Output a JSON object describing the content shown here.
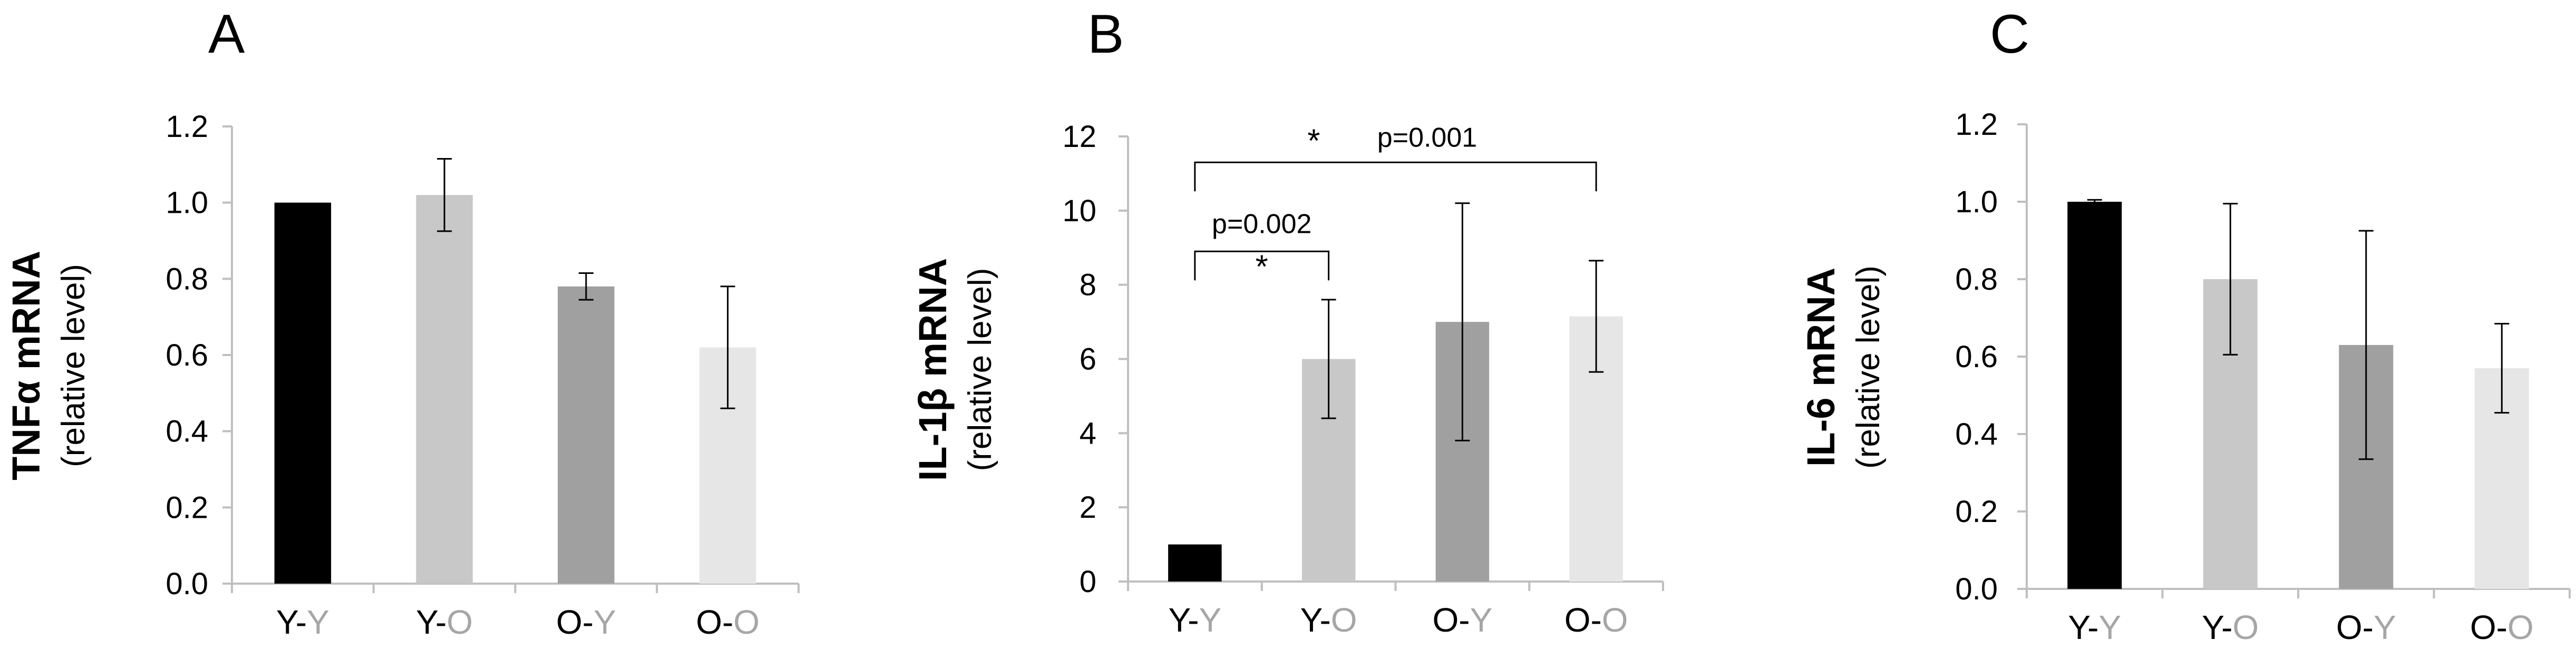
{
  "chart_data": [
    {
      "type": "bar",
      "panel_label": "A",
      "ylabel": "TNFα mRNA",
      "ylabel2": "(relative level)",
      "ylim": [
        0,
        1.2
      ],
      "ytick_step": 0.2,
      "ytick_decimals": 1,
      "categories": [
        {
          "a": "Y",
          "b": "Y"
        },
        {
          "a": "Y",
          "b": "O"
        },
        {
          "a": "O",
          "b": "Y"
        },
        {
          "a": "O",
          "b": "O"
        }
      ],
      "values": [
        1.0,
        1.02,
        0.78,
        0.62
      ],
      "errors": [
        0.0,
        0.095,
        0.035,
        0.16
      ],
      "bar_colors": [
        "#000000",
        "#c8c8c8",
        "#a0a0a0",
        "#e6e6e6"
      ],
      "annotations": []
    },
    {
      "type": "bar",
      "panel_label": "B",
      "ylabel": "IL-1β mRNA",
      "ylabel2": "(relative level)",
      "ylim": [
        0,
        12
      ],
      "ytick_step": 2,
      "ytick_decimals": 0,
      "categories": [
        {
          "a": "Y",
          "b": "Y"
        },
        {
          "a": "Y",
          "b": "O"
        },
        {
          "a": "O",
          "b": "Y"
        },
        {
          "a": "O",
          "b": "O"
        }
      ],
      "values": [
        1.0,
        6.0,
        7.0,
        7.15
      ],
      "errors": [
        0.0,
        1.6,
        3.2,
        1.5
      ],
      "bar_colors": [
        "#000000",
        "#c8c8c8",
        "#a0a0a0",
        "#e6e6e6"
      ],
      "annotations": [
        {
          "from": 0,
          "to": 1,
          "y": 8.9,
          "star": "*",
          "text": "p=0.002"
        },
        {
          "from": 0,
          "to": 3,
          "y": 11.3,
          "star": "*",
          "text": "p=0.001"
        }
      ]
    },
    {
      "type": "bar",
      "panel_label": "C",
      "ylabel": "IL-6 mRNA",
      "ylabel2": "(relative level)",
      "ylim": [
        0,
        1.2
      ],
      "ytick_step": 0.2,
      "ytick_decimals": 1,
      "categories": [
        {
          "a": "Y",
          "b": "Y"
        },
        {
          "a": "Y",
          "b": "O"
        },
        {
          "a": "O",
          "b": "Y"
        },
        {
          "a": "O",
          "b": "O"
        }
      ],
      "values": [
        1.0,
        0.8,
        0.63,
        0.57
      ],
      "errors": [
        0.005,
        0.195,
        0.295,
        0.115
      ],
      "bar_colors": [
        "#000000",
        "#c8c8c8",
        "#a0a0a0",
        "#e6e6e6"
      ],
      "annotations": []
    }
  ],
  "colors": {
    "axis": "#bfbfbf",
    "text": "#000000",
    "category_second_letter": "#a6a6a6"
  }
}
